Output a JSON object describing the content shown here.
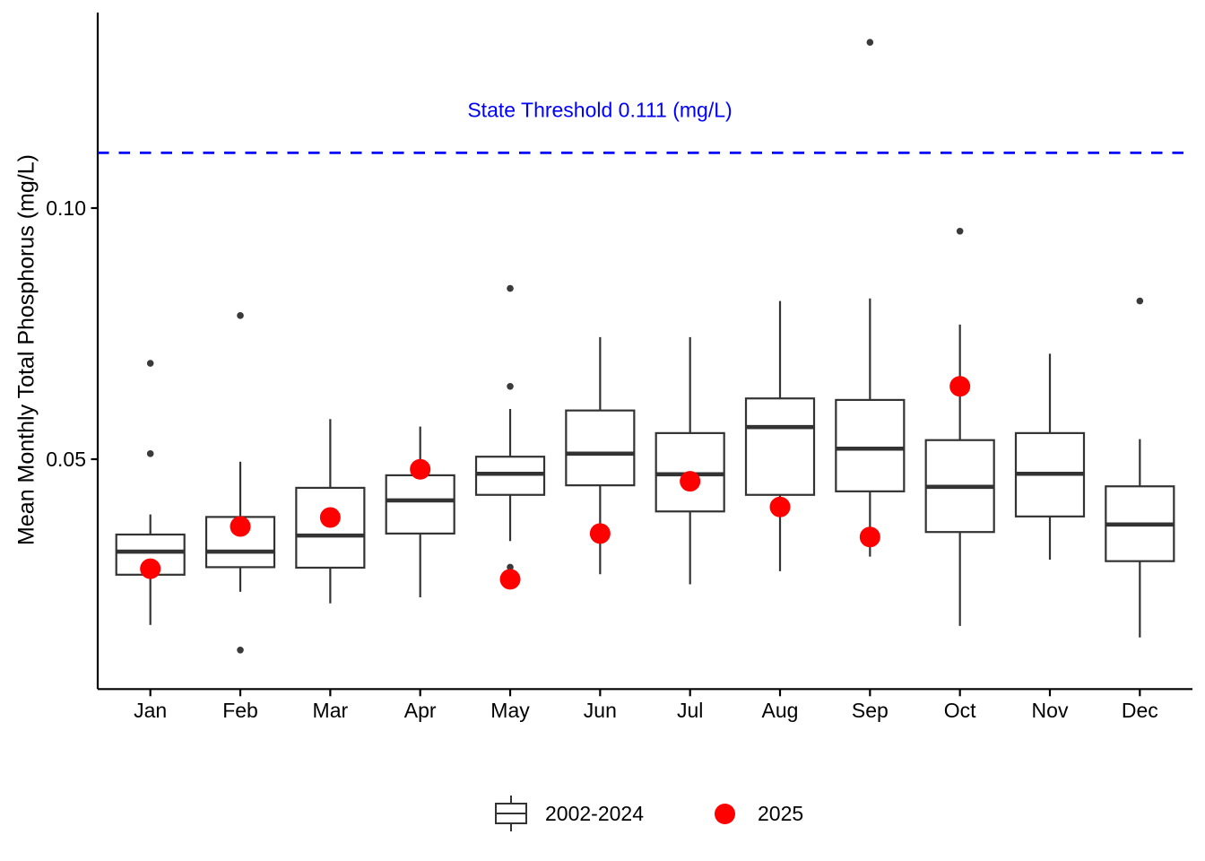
{
  "chart_data": {
    "type": "boxplot",
    "title": "",
    "xlabel": "",
    "ylabel": "Mean Monthly Total Phosphorus (mg/L)",
    "categories": [
      "Jan",
      "Feb",
      "Mar",
      "Apr",
      "May",
      "Jun",
      "Jul",
      "Aug",
      "Sep",
      "Oct",
      "Nov",
      "Dec"
    ],
    "y_axis": {
      "ticks": [
        {
          "value": 0.05,
          "label": "0.05"
        },
        {
          "value": 0.1,
          "label": "0.10"
        }
      ],
      "range": [
        0.004,
        0.139
      ],
      "grid": false
    },
    "threshold": {
      "value": 0.111,
      "label": "State Threshold 0.111 (mg/L)",
      "color": "#0000FF",
      "style": "dashed"
    },
    "series": [
      {
        "name": "2002-2024",
        "type": "box",
        "stats": [
          {
            "month": "Jan",
            "whisker_low": 0.017,
            "q1": 0.027,
            "median": 0.0316,
            "q3": 0.035,
            "whisker_high": 0.039,
            "outliers": [
              0.0511,
              0.0691
            ]
          },
          {
            "month": "Feb",
            "whisker_low": 0.0236,
            "q1": 0.0285,
            "median": 0.0316,
            "q3": 0.0385,
            "whisker_high": 0.0495,
            "outliers": [
              0.012,
              0.0786
            ]
          },
          {
            "month": "Mar",
            "whisker_low": 0.0213,
            "q1": 0.0284,
            "median": 0.0348,
            "q3": 0.0443,
            "whisker_high": 0.058,
            "outliers": []
          },
          {
            "month": "Apr",
            "whisker_low": 0.0225,
            "q1": 0.0352,
            "median": 0.0418,
            "q3": 0.0468,
            "whisker_high": 0.0565,
            "outliers": []
          },
          {
            "month": "May",
            "whisker_low": 0.0337,
            "q1": 0.0429,
            "median": 0.0471,
            "q3": 0.0505,
            "whisker_high": 0.06,
            "outliers": [
              0.0285,
              0.0645,
              0.084
            ]
          },
          {
            "month": "Jun",
            "whisker_low": 0.0271,
            "q1": 0.0448,
            "median": 0.0511,
            "q3": 0.0597,
            "whisker_high": 0.0743,
            "outliers": []
          },
          {
            "month": "Jul",
            "whisker_low": 0.0251,
            "q1": 0.0396,
            "median": 0.047,
            "q3": 0.0552,
            "whisker_high": 0.0743,
            "outliers": []
          },
          {
            "month": "Aug",
            "whisker_low": 0.0277,
            "q1": 0.0429,
            "median": 0.0564,
            "q3": 0.0621,
            "whisker_high": 0.0815,
            "outliers": []
          },
          {
            "month": "Sep",
            "whisker_low": 0.0306,
            "q1": 0.0436,
            "median": 0.0521,
            "q3": 0.0618,
            "whisker_high": 0.082,
            "outliers": [
              0.133
            ]
          },
          {
            "month": "Oct",
            "whisker_low": 0.0168,
            "q1": 0.0355,
            "median": 0.0445,
            "q3": 0.0538,
            "whisker_high": 0.0768,
            "outliers": [
              0.0954
            ]
          },
          {
            "month": "Nov",
            "whisker_low": 0.03,
            "q1": 0.0386,
            "median": 0.0471,
            "q3": 0.0552,
            "whisker_high": 0.071,
            "outliers": []
          },
          {
            "month": "Dec",
            "whisker_low": 0.0145,
            "q1": 0.0297,
            "median": 0.037,
            "q3": 0.0446,
            "whisker_high": 0.054,
            "outliers": [
              0.0815
            ]
          }
        ]
      },
      {
        "name": "2025",
        "type": "point",
        "color": "#FF0000",
        "values": [
          0.0282,
          0.0366,
          0.0384,
          0.048,
          0.0261,
          0.0352,
          0.0456,
          0.0405,
          0.0345,
          0.0645,
          null,
          null
        ]
      }
    ],
    "legend": [
      {
        "label": "2002-2024",
        "type": "box"
      },
      {
        "label": "2025",
        "type": "point",
        "color": "#FF0000"
      }
    ],
    "colors": {
      "box_stroke": "#333333",
      "box_fill": "#FFFFFF",
      "outlier": "#3A3A3A",
      "point": "#FF0000",
      "threshold": "#0000FF",
      "axis": "#000000"
    }
  }
}
